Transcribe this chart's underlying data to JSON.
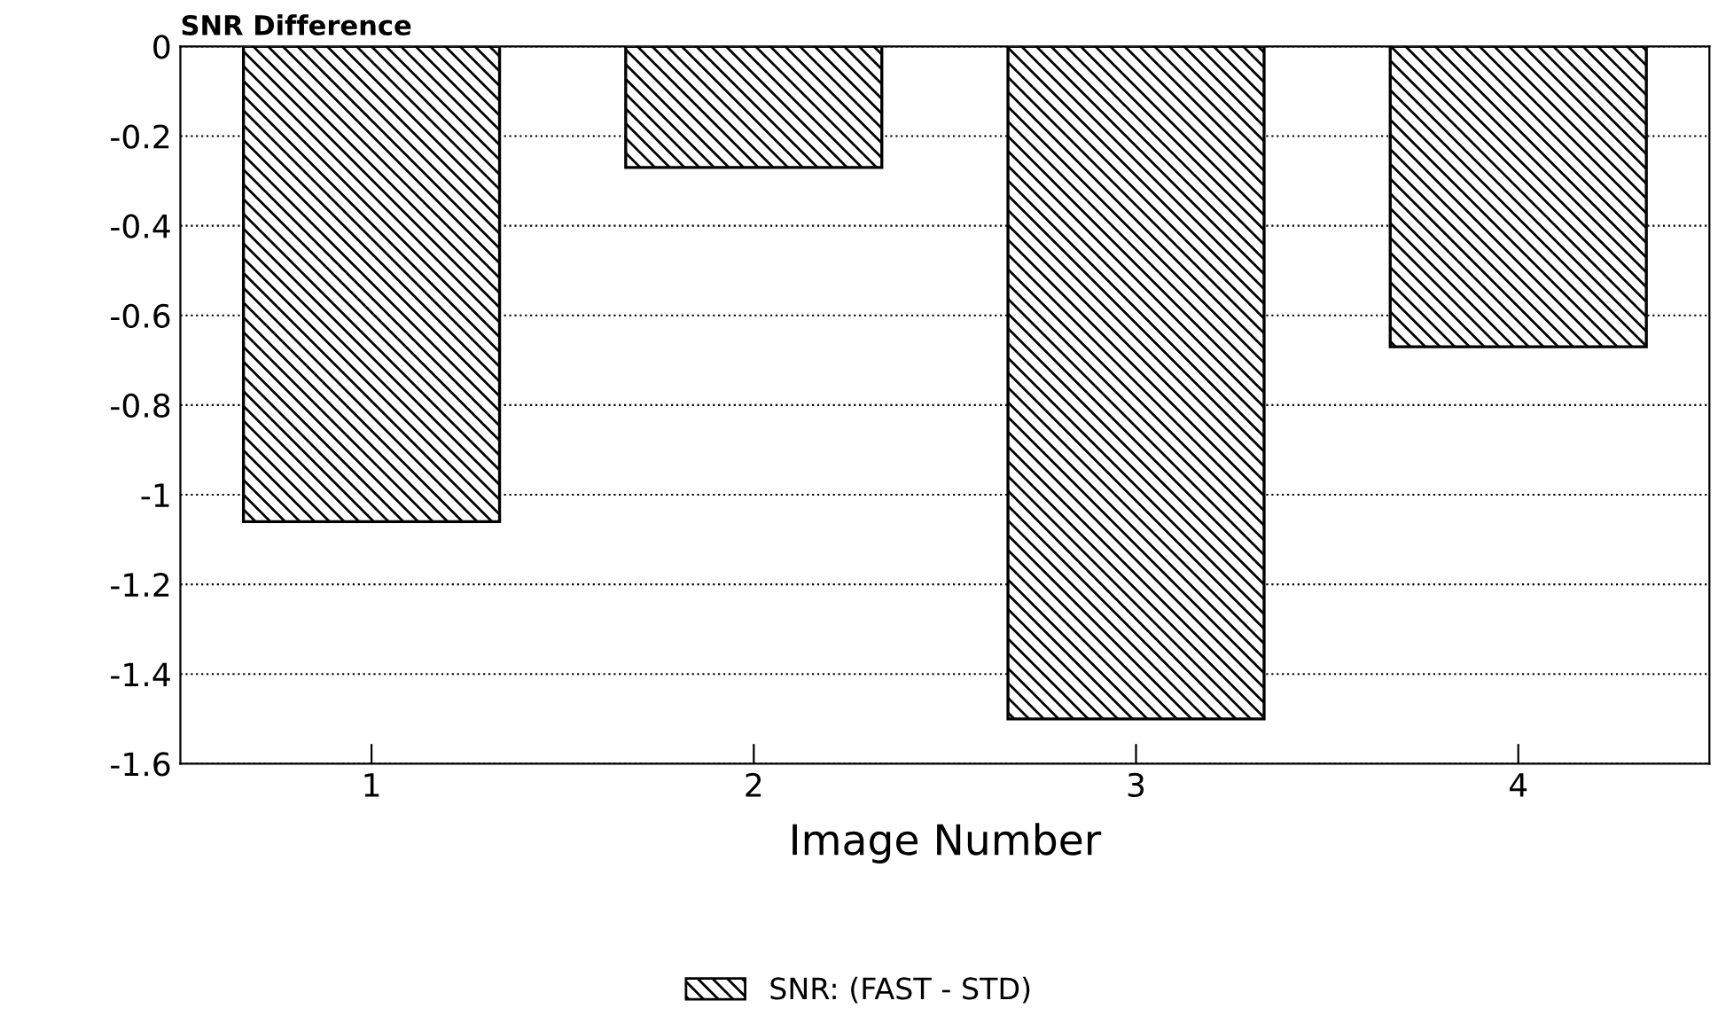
{
  "chart_data": {
    "type": "bar",
    "ylabel": "SNR Difference",
    "xlabel": "Image Number",
    "categories": [
      "1",
      "2",
      "3",
      "4"
    ],
    "series": [
      {
        "name": "SNR: (FAST - STD)",
        "color": "#000000",
        "values": [
          -1.06,
          -0.27,
          -1.5,
          -0.67
        ]
      }
    ],
    "ylim": [
      -1.6,
      0
    ],
    "yticks": [
      0,
      -0.2,
      -0.4,
      -0.6,
      -0.8,
      -1,
      -1.2,
      -1.4,
      -1.6
    ],
    "grid": "y",
    "legend": "bottom",
    "line_style": "dotted"
  }
}
